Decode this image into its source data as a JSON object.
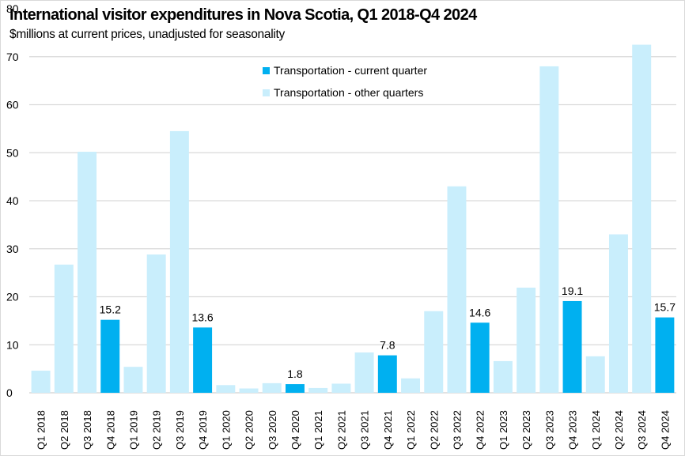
{
  "chart_data": {
    "type": "bar",
    "title": "International visitor expenditures in Nova Scotia, Q1 2018-Q4 2024",
    "subtitle": "$millions at current prices, unadjusted for seasonality",
    "xlabel": "",
    "ylabel": "",
    "ylim": [
      0,
      80
    ],
    "yticks": [
      0,
      10,
      20,
      30,
      40,
      50,
      60,
      70,
      80
    ],
    "grid": true,
    "legend_position": "top-center",
    "categories": [
      "Q1 2018",
      "Q2 2018",
      "Q3 2018",
      "Q4 2018",
      "Q1 2019",
      "Q2 2019",
      "Q3 2019",
      "Q4 2019",
      "Q1 2020",
      "Q2 2020",
      "Q3 2020",
      "Q4 2020",
      "Q1 2021",
      "Q2 2021",
      "Q3 2021",
      "Q4 2021",
      "Q1 2022",
      "Q2 2022",
      "Q3 2022",
      "Q4 2022",
      "Q1 2023",
      "Q2 2023",
      "Q3 2023",
      "Q4 2023",
      "Q1 2024",
      "Q2 2024",
      "Q3 2024",
      "Q4 2024"
    ],
    "values": [
      4.6,
      26.7,
      50.2,
      15.2,
      5.4,
      28.8,
      54.5,
      13.6,
      1.6,
      0.9,
      2.0,
      1.8,
      1.0,
      1.9,
      8.4,
      7.8,
      3.0,
      17.0,
      43.0,
      14.6,
      6.6,
      21.9,
      68.0,
      19.1,
      7.6,
      33.0,
      72.5,
      15.7
    ],
    "highlight": [
      false,
      false,
      false,
      true,
      false,
      false,
      false,
      true,
      false,
      false,
      false,
      true,
      false,
      false,
      false,
      true,
      false,
      false,
      false,
      true,
      false,
      false,
      false,
      true,
      false,
      false,
      false,
      true
    ],
    "data_labels": {
      "3": "15.2",
      "7": "13.6",
      "11": "1.8",
      "15": "7.8",
      "19": "14.6",
      "23": "19.1",
      "27": "15.7"
    },
    "series": [
      {
        "name": "Transportation - current quarter",
        "color": "#00b0f0"
      },
      {
        "name": "Transportation - other quarters",
        "color": "#c9eefc"
      }
    ],
    "gridline_color": "#d9d9d9"
  }
}
